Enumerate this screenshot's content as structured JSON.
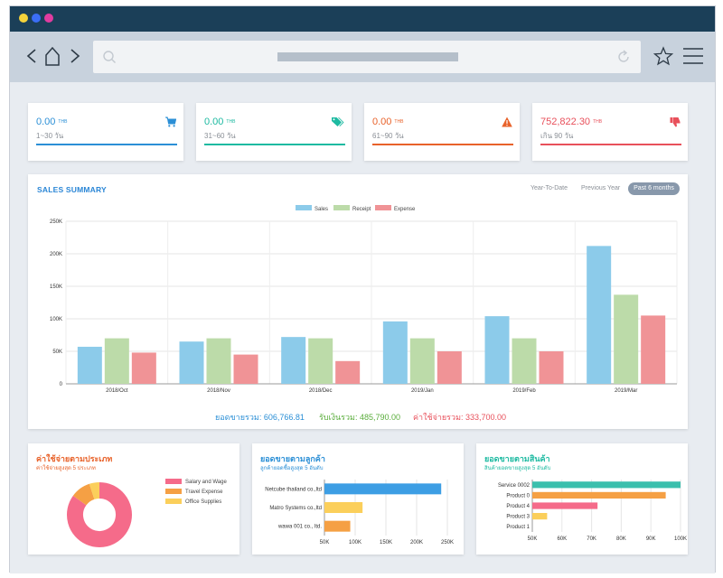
{
  "kpis": [
    {
      "value": "0.00",
      "unit": "THB",
      "sub": "1~30 วัน",
      "color": "#2b8fd6"
    },
    {
      "value": "0.00",
      "unit": "THB",
      "sub": "31~60 วัน",
      "color": "#1dbaa1"
    },
    {
      "value": "0.00",
      "unit": "THB",
      "sub": "61~90 วัน",
      "color": "#e8622a"
    },
    {
      "value": "752,822.30",
      "unit": "THB",
      "sub": "เกิน 90 วัน",
      "color": "#e8505b"
    }
  ],
  "sales_summary": {
    "title": "SALES SUMMARY",
    "periods": [
      "Year-To-Date",
      "Previous Year",
      "Past 6 months"
    ],
    "totals": [
      {
        "label": "ยอดขายรวม:",
        "value": "606,766.81",
        "color": "#2b8fd6"
      },
      {
        "label": "รับเงินรวม:",
        "value": "485,790.00",
        "color": "#5aad3c"
      },
      {
        "label": "ค่าใช้จ่ายรวม:",
        "value": "333,700.00",
        "color": "#e8505b"
      }
    ]
  },
  "chart_data": [
    {
      "type": "bar",
      "categories": [
        "2018/Oct",
        "2018/Nov",
        "2018/Dec",
        "2019/Jan",
        "2019/Feb",
        "2019/Mar"
      ],
      "series": [
        {
          "name": "Sales",
          "values": [
            57000,
            65000,
            72000,
            96000,
            104000,
            212000
          ],
          "color": "#8ccbea"
        },
        {
          "name": "Receipt",
          "values": [
            70000,
            70000,
            70000,
            70000,
            70000,
            137000
          ],
          "color": "#bcdba9"
        },
        {
          "name": "Expense",
          "values": [
            48000,
            45000,
            35000,
            50000,
            50000,
            105000
          ],
          "color": "#f09396"
        }
      ],
      "yticks": [
        "0",
        "50K",
        "100K",
        "150K",
        "200K",
        "250K"
      ],
      "ylim": [
        0,
        250000
      ],
      "legend": "top-center",
      "grid": true
    },
    {
      "type": "pie",
      "title": "ค่าใช้จ่ายตามประเภท",
      "subtitle": "ค่าใช้จ่ายสูงสุด 5 ประเภท",
      "labels": [
        "Salary and Wage",
        "Travel Expense",
        "Office Supplies"
      ],
      "values": [
        85,
        10,
        5
      ],
      "colors": [
        "#f56b8a",
        "#f5a044",
        "#fbcf5b"
      ]
    },
    {
      "type": "bar",
      "orientation": "horizontal",
      "title": "ยอดขายตามลูกค้า",
      "subtitle": "ลูกค้ายอดซื้อสูงสุด 5 อันดับ",
      "categories": [
        "Netcube thailand co.,ltd",
        "Matro Systems co.,ltd",
        "wawa 001 co., ltd."
      ],
      "values": [
        240000,
        112000,
        92000
      ],
      "colors": [
        "#3d9ee4",
        "#fbcf5b",
        "#f5a044"
      ],
      "xticks": [
        "50K",
        "100K",
        "150K",
        "200K",
        "250K"
      ],
      "xlim": [
        50000,
        250000
      ]
    },
    {
      "type": "bar",
      "orientation": "horizontal",
      "title": "ยอดขายตามสินค้า",
      "subtitle": "สินค้ายอดขายสูงสุด 5 อันดับ",
      "categories": [
        "Service 0002",
        "Product 0",
        "Product 4",
        "Product 3",
        "Product 1"
      ],
      "values": [
        100000,
        95000,
        72000,
        55000,
        50000
      ],
      "colors": [
        "#3bbfad",
        "#f5a044",
        "#f56b8a",
        "#fbcf5b",
        "#cccccc"
      ],
      "xticks": [
        "50K",
        "60K",
        "70K",
        "80K",
        "90K",
        "100K"
      ],
      "xlim": [
        50000,
        100000
      ]
    }
  ]
}
